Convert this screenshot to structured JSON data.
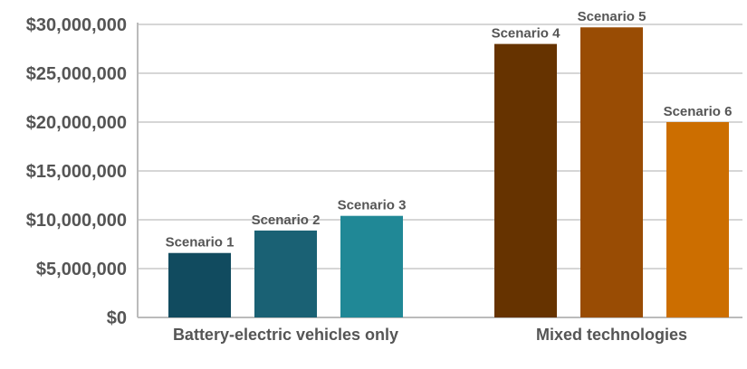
{
  "chart_data": {
    "type": "bar",
    "title": "",
    "xlabel": "",
    "ylabel": "",
    "ylim": [
      0,
      30000000
    ],
    "yticks": [
      0,
      5000000,
      10000000,
      15000000,
      20000000,
      25000000,
      30000000
    ],
    "ytick_labels": [
      "$0",
      "$5,000,000",
      "$10,000,000",
      "$15,000,000",
      "$20,000,000",
      "$25,000,000",
      "$30,000,000"
    ],
    "grid": true,
    "groups": [
      {
        "label": "Battery-electric vehicles only",
        "bars": [
          {
            "name": "Scenario 1",
            "value": 6600000,
            "color": "#114b5f"
          },
          {
            "name": "Scenario 2",
            "value": 8900000,
            "color": "#1a6174"
          },
          {
            "name": "Scenario 3",
            "value": 10400000,
            "color": "#208896"
          }
        ]
      },
      {
        "label": "Mixed technologies",
        "bars": [
          {
            "name": "Scenario 4",
            "value": 28000000,
            "color": "#663300"
          },
          {
            "name": "Scenario 5",
            "value": 29700000,
            "color": "#994c04"
          },
          {
            "name": "Scenario 6",
            "value": 20000000,
            "color": "#cc6e00"
          }
        ]
      }
    ]
  }
}
